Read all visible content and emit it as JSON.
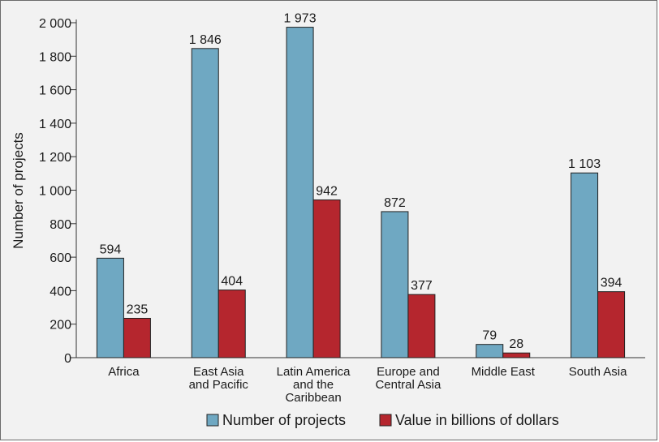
{
  "chart_data": {
    "type": "bar",
    "title": "",
    "xlabel": "",
    "ylabel": "Number of projects",
    "ylim": [
      0,
      2000
    ],
    "yticks": [
      0,
      200,
      400,
      600,
      800,
      1000,
      1200,
      1400,
      1600,
      1800,
      2000
    ],
    "ytick_labels": [
      "0",
      "200",
      "400",
      "600",
      "800",
      "1 000",
      "1 200",
      "1 400",
      "1 600",
      "1 800",
      "2 000"
    ],
    "categories": [
      [
        "Africa"
      ],
      [
        "East Asia",
        "and Pacific"
      ],
      [
        "Latin America",
        "and the",
        "Caribbean"
      ],
      [
        "Europe and",
        "Central Asia"
      ],
      [
        "Middle East"
      ],
      [
        "South Asia"
      ]
    ],
    "series": [
      {
        "name": "Number of projects",
        "color": "#6fa8c2",
        "values": [
          594,
          1846,
          1973,
          872,
          79,
          1103
        ],
        "labels": [
          "594",
          "1 846",
          "1 973",
          "872",
          "79",
          "1 103"
        ]
      },
      {
        "name": "Value in billions of dollars",
        "color": "#b5262e",
        "values": [
          235,
          404,
          942,
          377,
          28,
          394
        ],
        "labels": [
          "235",
          "404",
          "942",
          "377",
          "28",
          "394"
        ]
      }
    ],
    "grid": false,
    "legend": "bottom"
  }
}
